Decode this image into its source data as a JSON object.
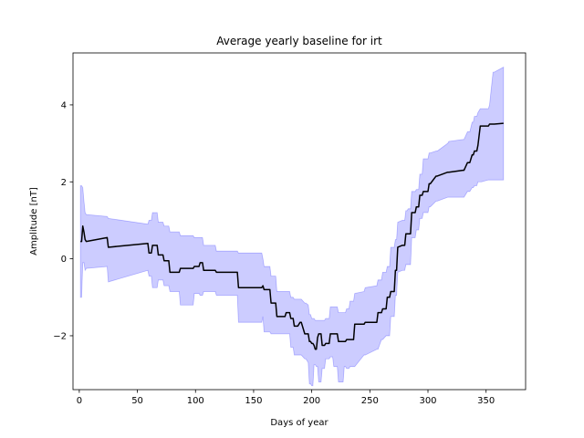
{
  "chart_data": {
    "type": "line",
    "title": "Average yearly baseline for irt",
    "xlabel": "Days of year",
    "ylabel": "Amplitude [nT]",
    "xlim": [
      -5.4,
      384
    ],
    "ylim": [
      -3.4,
      5.35
    ],
    "xticks": [
      0,
      50,
      100,
      150,
      200,
      250,
      300,
      350
    ],
    "yticks": [
      -2,
      0,
      2,
      4
    ],
    "grid": false,
    "line_color": "#000000",
    "band_color": "#0000ff",
    "band_opacity": 0.2,
    "series": [
      {
        "kind": "mean",
        "x": [
          1,
          2,
          3,
          4,
          5,
          6,
          24,
          25,
          59,
          60,
          62,
          63,
          67,
          68,
          72,
          73,
          77,
          78,
          86,
          87,
          98,
          99,
          103,
          104,
          106,
          107,
          117,
          118,
          136,
          137,
          157,
          158,
          159,
          164,
          165,
          166,
          169,
          170,
          177,
          178,
          179,
          181,
          182,
          183,
          184,
          185,
          186,
          187,
          188,
          190,
          191,
          194,
          195,
          197,
          198,
          199,
          200,
          201,
          202,
          203,
          204,
          205,
          206,
          207,
          208,
          209,
          210,
          211,
          212,
          213,
          215,
          216,
          218,
          219,
          222,
          223,
          227,
          228,
          229,
          230,
          232,
          233,
          236,
          237,
          245,
          246,
          256,
          257,
          260,
          261,
          264,
          265,
          266,
          267,
          268,
          270,
          271,
          272,
          273,
          274,
          278,
          279,
          280,
          281,
          282,
          283,
          285,
          286,
          287,
          289,
          290,
          291,
          292,
          293,
          295,
          296,
          297,
          300,
          301,
          302,
          307,
          308,
          317,
          318,
          330,
          331,
          334,
          335,
          336,
          338,
          339,
          340,
          342,
          343,
          345,
          346,
          352,
          353,
          356,
          357,
          365
        ],
        "y": [
          0.45,
          0.45,
          0.85,
          0.7,
          0.5,
          0.45,
          0.55,
          0.3,
          0.4,
          0.15,
          0.15,
          0.35,
          0.35,
          0.1,
          0.1,
          -0.05,
          -0.05,
          -0.35,
          -0.35,
          -0.25,
          -0.25,
          -0.2,
          -0.2,
          -0.1,
          -0.1,
          -0.3,
          -0.3,
          -0.35,
          -0.35,
          -0.75,
          -0.75,
          -0.7,
          -0.8,
          -0.8,
          -1.15,
          -1.15,
          -1.15,
          -1.5,
          -1.5,
          -1.4,
          -1.4,
          -1.4,
          -1.55,
          -1.55,
          -1.55,
          -1.75,
          -1.75,
          -1.75,
          -1.75,
          -1.65,
          -1.65,
          -1.95,
          -1.95,
          -1.95,
          -2.15,
          -2.15,
          -2.2,
          -2.2,
          -2.25,
          -2.35,
          -2.35,
          -2.05,
          -1.95,
          -1.95,
          -1.95,
          -2.25,
          -2.25,
          -2.25,
          -2.2,
          -2.2,
          -2.2,
          -1.95,
          -1.95,
          -1.95,
          -1.95,
          -2.15,
          -2.15,
          -2.15,
          -2.15,
          -2.1,
          -2.1,
          -2.1,
          -2.1,
          -1.7,
          -1.7,
          -1.65,
          -1.65,
          -1.4,
          -1.4,
          -1.3,
          -1.3,
          -1.0,
          -1.0,
          -1.0,
          -0.85,
          -0.85,
          -0.85,
          -0.3,
          -0.3,
          0.3,
          0.35,
          0.35,
          0.35,
          0.65,
          0.65,
          0.65,
          0.65,
          1.2,
          1.2,
          1.2,
          1.35,
          1.35,
          1.35,
          1.65,
          1.65,
          1.75,
          1.75,
          1.75,
          1.95,
          1.95,
          2.15,
          2.15,
          2.25,
          2.25,
          2.3,
          2.3,
          2.5,
          2.5,
          2.5,
          2.7,
          2.7,
          2.8,
          2.8,
          2.95,
          3.45,
          3.45,
          3.45,
          3.5,
          3.5,
          3.5,
          3.52
        ]
      },
      {
        "kind": "upper",
        "x": [
          1,
          2,
          3,
          4,
          5,
          6,
          24,
          25,
          59,
          60,
          62,
          63,
          67,
          68,
          72,
          73,
          77,
          78,
          86,
          87,
          98,
          99,
          103,
          104,
          106,
          107,
          117,
          118,
          136,
          137,
          157,
          158,
          159,
          164,
          165,
          166,
          169,
          170,
          177,
          178,
          179,
          181,
          182,
          183,
          184,
          185,
          186,
          187,
          188,
          190,
          191,
          194,
          195,
          197,
          198,
          199,
          200,
          201,
          202,
          203,
          204,
          205,
          206,
          207,
          208,
          209,
          210,
          211,
          212,
          213,
          215,
          216,
          218,
          219,
          222,
          223,
          227,
          228,
          229,
          230,
          232,
          233,
          236,
          237,
          245,
          246,
          256,
          257,
          260,
          261,
          264,
          265,
          266,
          267,
          268,
          270,
          271,
          272,
          273,
          274,
          278,
          279,
          280,
          281,
          282,
          283,
          285,
          286,
          287,
          289,
          290,
          291,
          292,
          293,
          295,
          296,
          297,
          300,
          301,
          302,
          307,
          308,
          317,
          318,
          330,
          331,
          334,
          335,
          336,
          338,
          339,
          340,
          342,
          343,
          345,
          346,
          352,
          353,
          356,
          357,
          365
        ],
        "y": [
          1.9,
          1.9,
          1.85,
          1.5,
          1.2,
          1.15,
          1.1,
          1.05,
          0.9,
          1.0,
          1.0,
          1.2,
          1.2,
          0.95,
          0.95,
          0.85,
          0.85,
          0.7,
          0.7,
          0.6,
          0.6,
          0.55,
          0.55,
          0.55,
          0.55,
          0.35,
          0.35,
          0.2,
          0.2,
          0.15,
          0.15,
          0.0,
          -0.2,
          -0.2,
          -0.45,
          -0.45,
          -0.45,
          -0.85,
          -0.85,
          -0.85,
          -0.85,
          -0.85,
          -1.0,
          -1.0,
          -1.0,
          -1.05,
          -1.05,
          -1.05,
          -1.05,
          -1.05,
          -1.05,
          -1.15,
          -1.15,
          -1.2,
          -1.45,
          -1.45,
          -1.55,
          -1.55,
          -1.55,
          -1.6,
          -1.6,
          -1.6,
          -1.6,
          -1.6,
          -1.6,
          -1.6,
          -1.6,
          -1.6,
          -1.55,
          -1.55,
          -1.55,
          -1.25,
          -1.25,
          -1.25,
          -1.25,
          -1.4,
          -1.4,
          -1.4,
          -1.4,
          -1.3,
          -1.3,
          -1.1,
          -1.1,
          -0.9,
          -0.85,
          -0.75,
          -0.7,
          -0.55,
          -0.55,
          -0.35,
          -0.35,
          -0.2,
          -0.2,
          -0.2,
          0.3,
          0.3,
          0.3,
          0.5,
          0.5,
          0.95,
          1.0,
          1.0,
          1.0,
          1.25,
          1.25,
          1.3,
          1.3,
          1.75,
          1.75,
          1.75,
          1.8,
          1.8,
          1.8,
          2.2,
          2.2,
          2.6,
          2.6,
          2.6,
          2.75,
          2.75,
          2.8,
          2.8,
          3.0,
          3.05,
          3.1,
          3.1,
          3.3,
          3.3,
          3.3,
          3.55,
          3.55,
          3.7,
          3.7,
          3.8,
          3.9,
          3.9,
          3.9,
          4.0,
          4.85,
          4.85,
          4.98
        ]
      },
      {
        "kind": "lower",
        "x": [
          1,
          2,
          3,
          4,
          5,
          6,
          24,
          25,
          59,
          60,
          62,
          63,
          67,
          68,
          72,
          73,
          77,
          78,
          86,
          87,
          98,
          99,
          103,
          104,
          106,
          107,
          117,
          118,
          136,
          137,
          157,
          158,
          159,
          164,
          165,
          166,
          169,
          170,
          177,
          178,
          179,
          181,
          182,
          183,
          184,
          185,
          186,
          187,
          188,
          190,
          191,
          194,
          195,
          197,
          198,
          199,
          200,
          201,
          202,
          203,
          204,
          205,
          206,
          207,
          208,
          209,
          210,
          211,
          212,
          213,
          215,
          216,
          218,
          219,
          222,
          223,
          227,
          228,
          229,
          230,
          232,
          233,
          236,
          237,
          245,
          246,
          256,
          257,
          260,
          261,
          264,
          265,
          266,
          267,
          268,
          270,
          271,
          272,
          273,
          274,
          278,
          279,
          280,
          281,
          282,
          283,
          285,
          286,
          287,
          289,
          290,
          291,
          292,
          293,
          295,
          296,
          297,
          300,
          301,
          302,
          307,
          308,
          317,
          318,
          330,
          331,
          334,
          335,
          336,
          338,
          339,
          340,
          342,
          343,
          345,
          346,
          352,
          353,
          356,
          357,
          365
        ],
        "y": [
          -1.0,
          -1.0,
          -0.1,
          -0.1,
          -0.3,
          -0.25,
          -0.2,
          -0.6,
          -0.3,
          -0.45,
          -0.45,
          -0.75,
          -0.75,
          -0.55,
          -0.55,
          -0.7,
          -0.7,
          -0.85,
          -0.85,
          -1.2,
          -1.2,
          -0.9,
          -0.9,
          -0.95,
          -0.95,
          -0.85,
          -0.85,
          -0.95,
          -0.95,
          -1.65,
          -1.65,
          -1.5,
          -1.9,
          -1.9,
          -1.95,
          -1.95,
          -1.95,
          -1.95,
          -1.95,
          -1.95,
          -1.95,
          -1.95,
          -2.3,
          -2.3,
          -2.3,
          -2.5,
          -2.5,
          -2.5,
          -2.5,
          -2.5,
          -2.5,
          -2.6,
          -2.6,
          -2.7,
          -3.25,
          -3.25,
          -3.3,
          -3.3,
          -2.75,
          -2.75,
          -2.8,
          -2.8,
          -3.2,
          -3.2,
          -3.2,
          -2.85,
          -2.85,
          -2.85,
          -2.6,
          -2.6,
          -2.6,
          -2.55,
          -2.55,
          -2.8,
          -2.8,
          -3.2,
          -3.2,
          -2.8,
          -2.8,
          -2.85,
          -2.85,
          -2.8,
          -2.8,
          -2.8,
          -2.5,
          -2.5,
          -2.35,
          -2.35,
          -2.1,
          -2.1,
          -2.0,
          -2.0,
          -2.0,
          -2.0,
          -1.5,
          -1.5,
          -1.5,
          -0.95,
          -0.95,
          -0.35,
          -0.3,
          -0.3,
          -0.3,
          -0.15,
          -0.15,
          -0.15,
          -0.15,
          0.55,
          0.55,
          0.55,
          0.75,
          0.75,
          0.75,
          1.05,
          1.05,
          1.2,
          1.2,
          1.2,
          1.35,
          1.35,
          1.5,
          1.5,
          1.6,
          1.6,
          1.6,
          1.6,
          1.75,
          1.75,
          1.75,
          1.85,
          1.85,
          1.9,
          1.9,
          2.0,
          2.0,
          2.0,
          2.05,
          2.05,
          2.05,
          2.05,
          2.05
        ]
      }
    ]
  }
}
